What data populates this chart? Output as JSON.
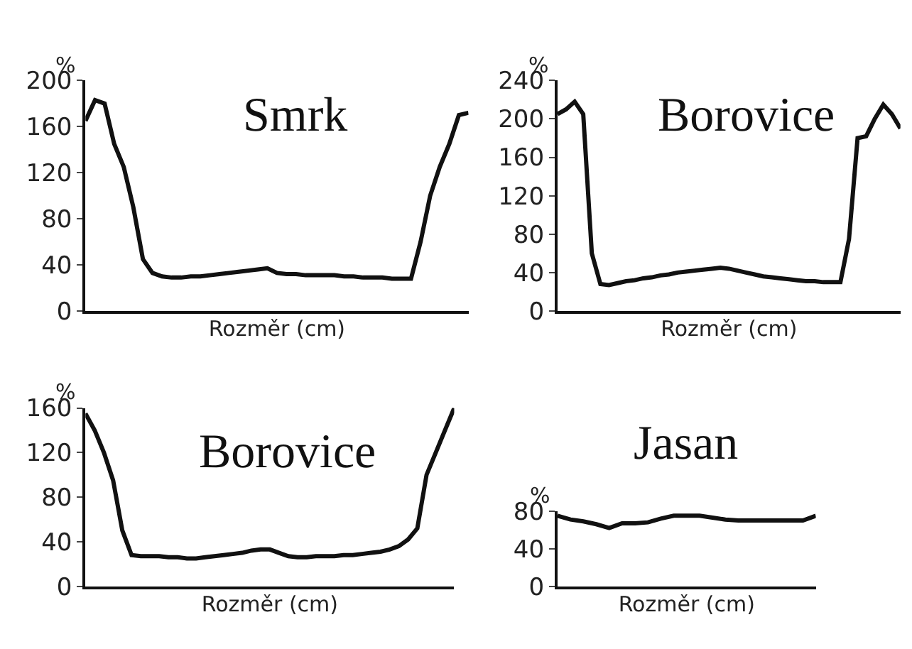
{
  "chart_data": [
    {
      "type": "line",
      "title": "Smrk",
      "ylabel": "%",
      "xlabel": "Rozměr (cm)",
      "ylim": [
        0,
        200
      ],
      "yticks": [
        0,
        40,
        80,
        120,
        160,
        200
      ],
      "tick_labels": "y",
      "categories": [
        null,
        null,
        null,
        null,
        null,
        null,
        null,
        null,
        null,
        null,
        null,
        null,
        null,
        null,
        null,
        null,
        null,
        null,
        null,
        null,
        null,
        null,
        null,
        null,
        null,
        null,
        null,
        null,
        null,
        null,
        null,
        null,
        null,
        null,
        null,
        null,
        null,
        null,
        null,
        null,
        null
      ],
      "series": [
        {
          "color": "#111111",
          "values": [
            165,
            183,
            180,
            145,
            125,
            90,
            45,
            33,
            30,
            29,
            29,
            30,
            30,
            31,
            32,
            33,
            34,
            35,
            36,
            37,
            33,
            32,
            32,
            31,
            31,
            31,
            31,
            30,
            30,
            29,
            29,
            29,
            28,
            28,
            28,
            60,
            100,
            125,
            145,
            170,
            172
          ]
        }
      ]
    },
    {
      "type": "line",
      "title": "Borovice",
      "ylabel": "%",
      "xlabel": "Rozměr (cm)",
      "ylim": [
        0,
        240
      ],
      "yticks": [
        0,
        40,
        80,
        120,
        160,
        200,
        240
      ],
      "tick_labels": "y",
      "categories": [
        null,
        null,
        null,
        null,
        null,
        null,
        null,
        null,
        null,
        null,
        null,
        null,
        null,
        null,
        null,
        null,
        null,
        null,
        null,
        null,
        null,
        null,
        null,
        null,
        null,
        null,
        null,
        null,
        null,
        null,
        null,
        null,
        null,
        null,
        null,
        null,
        null,
        null,
        null,
        null,
        null
      ],
      "series": [
        {
          "color": "#111111",
          "values": [
            205,
            210,
            218,
            205,
            60,
            28,
            27,
            29,
            31,
            32,
            34,
            35,
            37,
            38,
            40,
            41,
            42,
            43,
            44,
            45,
            44,
            42,
            40,
            38,
            36,
            35,
            34,
            33,
            32,
            31,
            31,
            30,
            30,
            30,
            75,
            180,
            182,
            200,
            215,
            205,
            190
          ]
        }
      ]
    },
    {
      "type": "line",
      "title": "Borovice",
      "ylabel": "%",
      "xlabel": "Rozměr (cm)",
      "ylim": [
        0,
        160
      ],
      "yticks": [
        0,
        40,
        80,
        120,
        160
      ],
      "tick_labels": "y",
      "categories": [
        null,
        null,
        null,
        null,
        null,
        null,
        null,
        null,
        null,
        null,
        null,
        null,
        null,
        null,
        null,
        null,
        null,
        null,
        null,
        null,
        null,
        null,
        null,
        null,
        null,
        null,
        null,
        null,
        null,
        null,
        null,
        null,
        null,
        null,
        null,
        null,
        null,
        null,
        null,
        null,
        null
      ],
      "series": [
        {
          "color": "#111111",
          "values": [
            155,
            140,
            120,
            95,
            50,
            28,
            27,
            27,
            27,
            26,
            26,
            25,
            25,
            26,
            27,
            28,
            29,
            30,
            32,
            33,
            33,
            30,
            27,
            26,
            26,
            27,
            27,
            27,
            28,
            28,
            29,
            30,
            31,
            33,
            36,
            42,
            52,
            100,
            120,
            140,
            160
          ]
        }
      ]
    },
    {
      "type": "line",
      "title": "Jasan",
      "ylabel": "%",
      "xlabel": "Rozměr (cm)",
      "ylim": [
        0,
        80
      ],
      "yticks": [
        0,
        40,
        80
      ],
      "tick_labels": "y",
      "categories": [
        null,
        null,
        null,
        null,
        null,
        null,
        null,
        null,
        null,
        null,
        null,
        null,
        null,
        null,
        null,
        null,
        null,
        null,
        null,
        null,
        null
      ],
      "series": [
        {
          "color": "#111111",
          "values": [
            75,
            71,
            69,
            66,
            62,
            67,
            67,
            68,
            72,
            75,
            75,
            75,
            73,
            71,
            70,
            70,
            70,
            70,
            70,
            70,
            75
          ]
        }
      ]
    }
  ]
}
